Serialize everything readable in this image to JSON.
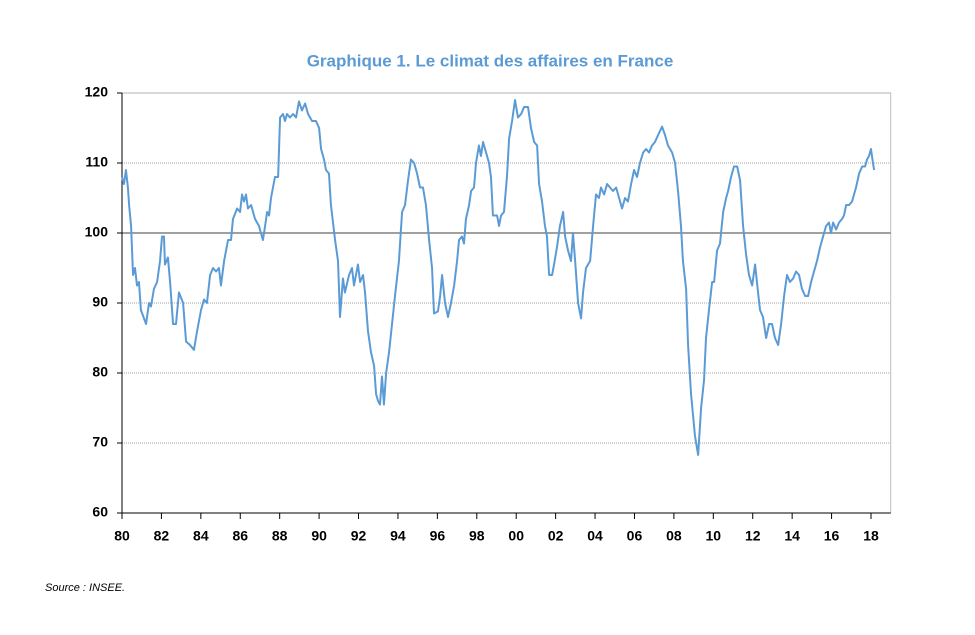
{
  "chart_data": {
    "type": "line",
    "title": "Graphique  1. Le climat des affaires en France",
    "source": "Source : INSEE.",
    "color": "#5b9bd5",
    "x": [
      1980.0,
      1980.1,
      1980.2,
      1980.3,
      1980.36,
      1980.46,
      1980.56,
      1980.66,
      1980.76,
      1980.86,
      1980.96,
      1981.22,
      1981.37,
      1981.47,
      1981.62,
      1981.78,
      1981.93,
      1982.03,
      1982.13,
      1982.18,
      1982.33,
      1982.44,
      1982.59,
      1982.74,
      1982.84,
      1982.89,
      1983.1,
      1983.25,
      1983.45,
      1983.65,
      1983.81,
      1984.01,
      1984.16,
      1984.31,
      1984.47,
      1984.62,
      1984.77,
      1984.92,
      1985.02,
      1985.18,
      1985.38,
      1985.53,
      1985.63,
      1985.84,
      1985.99,
      1986.09,
      1986.19,
      1986.29,
      1986.39,
      1986.55,
      1986.75,
      1986.95,
      1987.15,
      1987.26,
      1987.36,
      1987.46,
      1987.56,
      1987.76,
      1987.92,
      1988.02,
      1988.17,
      1988.27,
      1988.37,
      1988.52,
      1988.68,
      1988.83,
      1988.98,
      1989.13,
      1989.29,
      1989.44,
      1989.64,
      1989.84,
      1990.0,
      1990.1,
      1990.25,
      1990.35,
      1990.5,
      1990.6,
      1990.81,
      1990.96,
      1991.06,
      1991.21,
      1991.31,
      1991.52,
      1991.67,
      1991.77,
      1991.97,
      1992.08,
      1992.23,
      1992.33,
      1992.48,
      1992.63,
      1992.79,
      1992.89,
      1992.99,
      1993.09,
      1993.19,
      1993.29,
      1993.4,
      1993.55,
      1993.7,
      1993.85,
      1994.05,
      1994.21,
      1994.36,
      1994.51,
      1994.66,
      1994.82,
      1994.97,
      1995.12,
      1995.27,
      1995.42,
      1995.58,
      1995.73,
      1995.83,
      1996.03,
      1996.14,
      1996.24,
      1996.39,
      1996.54,
      1996.69,
      1996.85,
      1997.0,
      1997.1,
      1997.25,
      1997.35,
      1997.45,
      1997.61,
      1997.71,
      1997.86,
      1997.96,
      1998.11,
      1998.21,
      1998.32,
      1998.47,
      1998.62,
      1998.72,
      1998.82,
      1999.03,
      1999.13,
      1999.23,
      1999.38,
      1999.53,
      1999.64,
      1999.79,
      1999.94,
      2000.09,
      2000.25,
      2000.4,
      2000.6,
      2000.75,
      2000.91,
      2001.06,
      2001.16,
      2001.31,
      2001.46,
      2001.56,
      2001.67,
      2001.82,
      2001.92,
      2002.07,
      2002.22,
      2002.38,
      2002.48,
      2002.63,
      2002.78,
      2002.88,
      2002.99,
      2003.14,
      2003.29,
      2003.39,
      2003.54,
      2003.75,
      2003.9,
      2004.05,
      2004.2,
      2004.3,
      2004.46,
      2004.61,
      2004.76,
      2004.91,
      2005.07,
      2005.22,
      2005.37,
      2005.52,
      2005.67,
      2005.83,
      2005.98,
      2006.13,
      2006.28,
      2006.44,
      2006.59,
      2006.74,
      2006.89,
      2007.04,
      2007.2,
      2007.4,
      2007.55,
      2007.7,
      2007.91,
      2008.06,
      2008.21,
      2008.36,
      2008.46,
      2008.62,
      2008.72,
      2008.87,
      2009.07,
      2009.23,
      2009.38,
      2009.53,
      2009.63,
      2009.78,
      2009.94,
      2010.04,
      2010.19,
      2010.34,
      2010.5,
      2010.65,
      2010.75,
      2010.9,
      2011.05,
      2011.21,
      2011.36,
      2011.51,
      2011.66,
      2011.81,
      2011.97,
      2012.12,
      2012.27,
      2012.37,
      2012.52,
      2012.68,
      2012.83,
      2012.98,
      2013.13,
      2013.29,
      2013.44,
      2013.59,
      2013.74,
      2013.89,
      2014.05,
      2014.2,
      2014.35,
      2014.5,
      2014.66,
      2014.81,
      2014.96,
      2015.11,
      2015.26,
      2015.42,
      2015.57,
      2015.72,
      2015.87,
      2015.97,
      2016.08,
      2016.23,
      2016.38,
      2016.53,
      2016.63,
      2016.74,
      2016.89,
      2017.04,
      2017.24,
      2017.4,
      2017.55,
      2017.7,
      2017.8,
      2017.9,
      2018.0,
      2018.05,
      2018.1,
      2018.16
    ],
    "values": [
      108,
      107,
      109,
      106.5,
      104,
      101,
      94,
      95,
      92.5,
      93,
      89,
      87,
      90,
      89.5,
      92,
      93,
      96,
      99.5,
      99.5,
      95.5,
      96.5,
      93,
      87,
      87,
      90,
      91.5,
      90,
      84.5,
      84,
      83.3,
      86,
      89,
      90.5,
      90,
      94,
      95,
      94.5,
      95,
      92.5,
      96,
      99,
      99,
      102,
      103.5,
      103,
      105.5,
      104.5,
      105.5,
      103.5,
      104,
      102,
      101,
      99,
      101,
      103,
      102.5,
      105,
      108,
      108,
      116.5,
      117,
      116,
      117,
      116.5,
      117,
      116.5,
      118.8,
      117.5,
      118.5,
      117,
      116,
      116,
      115,
      112,
      110.5,
      109,
      108.5,
      104,
      99,
      96,
      88,
      93.5,
      91.5,
      94,
      95,
      92.5,
      95.5,
      93,
      94,
      91.5,
      86,
      83,
      81,
      77,
      76,
      75.5,
      79.5,
      75.5,
      80,
      83,
      87,
      91,
      96,
      103,
      104,
      107.5,
      110.5,
      110,
      108.5,
      106.5,
      106.5,
      104,
      99,
      95,
      88.5,
      88.8,
      91,
      94,
      90,
      88,
      90,
      92.5,
      96,
      99,
      99.5,
      98.5,
      102,
      104,
      106,
      106.5,
      110,
      112.5,
      111,
      113,
      111.5,
      110,
      108,
      102.5,
      102.5,
      101,
      102.5,
      103,
      108,
      113.5,
      116,
      119,
      116.5,
      117,
      118,
      118,
      115,
      113,
      112.5,
      107,
      104.5,
      101,
      99.5,
      94,
      94,
      95.5,
      98,
      101,
      103,
      99.5,
      97.5,
      96,
      100,
      96,
      90,
      87.8,
      91.5,
      95,
      96,
      101,
      105.5,
      105,
      106.5,
      105.5,
      107,
      106.5,
      106,
      106.5,
      105,
      103.5,
      105,
      104.5,
      107,
      109,
      108,
      110,
      111.5,
      112,
      111.5,
      112.5,
      113,
      114,
      115.2,
      114,
      112.5,
      111.5,
      110,
      106,
      101,
      96,
      92,
      84,
      77,
      71,
      68.3,
      75,
      79,
      85,
      89,
      93,
      93,
      97.5,
      98.5,
      103,
      105,
      106,
      108,
      109.5,
      109.5,
      107.5,
      101,
      97,
      94,
      92.5,
      95.5,
      91.5,
      89,
      88,
      85,
      87,
      87,
      85,
      84,
      87,
      91,
      94,
      93,
      93.5,
      94.5,
      94,
      92,
      91,
      91,
      93,
      94.5,
      96,
      98,
      99.5,
      101,
      101.5,
      100,
      101.5,
      100.5,
      101.5,
      102,
      102.5,
      104,
      104,
      104.5,
      106.5,
      108.5,
      109.5,
      109.5,
      110.5,
      111,
      112,
      111,
      110,
      109
    ],
    "xlim": [
      1980,
      2019
    ],
    "xticks": [
      {
        "value": 1980,
        "label": "80"
      },
      {
        "value": 1982,
        "label": "82"
      },
      {
        "value": 1984,
        "label": "84"
      },
      {
        "value": 1986,
        "label": "86"
      },
      {
        "value": 1988,
        "label": "88"
      },
      {
        "value": 1990,
        "label": "90"
      },
      {
        "value": 1992,
        "label": "92"
      },
      {
        "value": 1994,
        "label": "94"
      },
      {
        "value": 1996,
        "label": "96"
      },
      {
        "value": 1998,
        "label": "98"
      },
      {
        "value": 2000,
        "label": "00"
      },
      {
        "value": 2002,
        "label": "02"
      },
      {
        "value": 2004,
        "label": "04"
      },
      {
        "value": 2006,
        "label": "06"
      },
      {
        "value": 2008,
        "label": "08"
      },
      {
        "value": 2010,
        "label": "10"
      },
      {
        "value": 2012,
        "label": "12"
      },
      {
        "value": 2014,
        "label": "14"
      },
      {
        "value": 2016,
        "label": "16"
      },
      {
        "value": 2018,
        "label": "18"
      }
    ],
    "ylim": [
      60,
      120
    ],
    "yticks": [
      60,
      70,
      80,
      90,
      100,
      110,
      120
    ],
    "reference_line": 100,
    "grid": true
  }
}
